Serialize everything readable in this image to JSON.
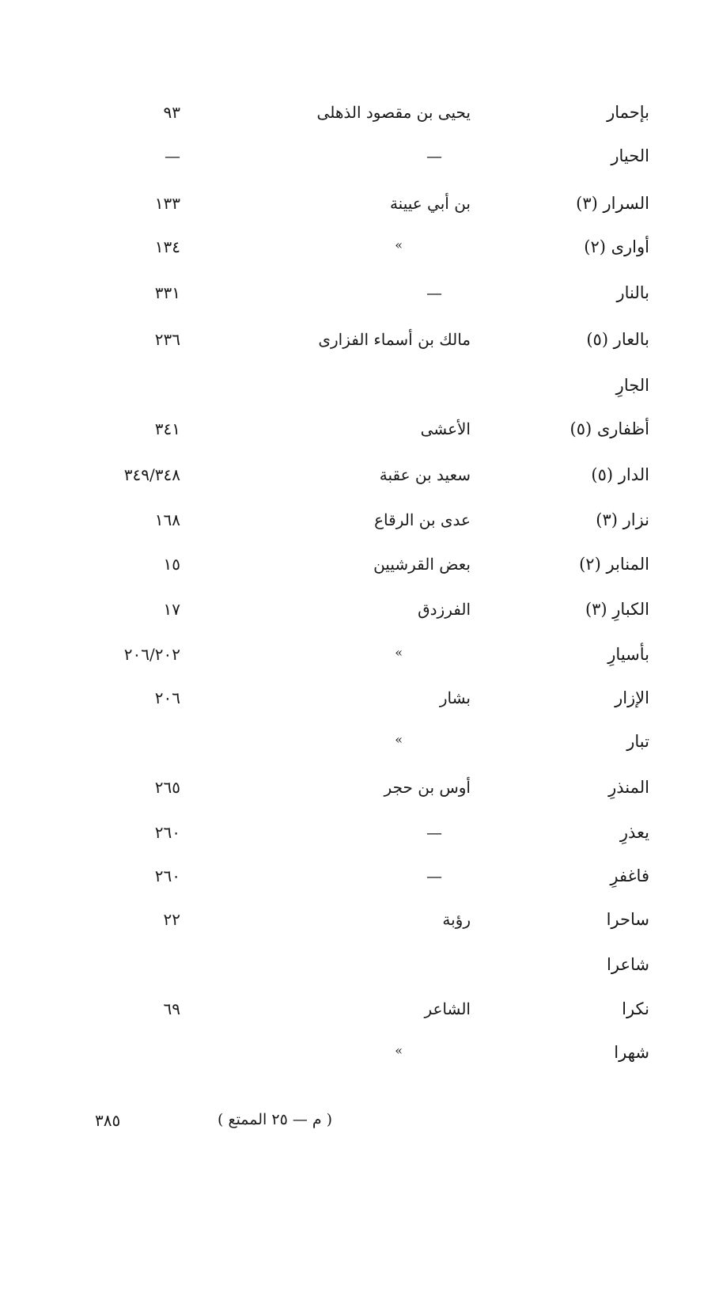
{
  "rows": [
    {
      "word": "بإحمار",
      "poet": "يحيى بن مقصود الذهلى",
      "page": "٩٣"
    },
    {
      "word": "الحيار",
      "poet": "—",
      "page": "—"
    },
    {
      "word": "السرار (٣)",
      "poet": "بن أبي عيينة",
      "page": "١٣٣"
    },
    {
      "word": "أوارى (٢)",
      "poet": "»",
      "page": "١٣٤"
    },
    {
      "word": "بالنار",
      "poet": "—",
      "page": "٣٣١"
    },
    {
      "word": "بالعار (٥)",
      "poet": "مالك بن أسماء الفزارى",
      "page": "٢٣٦"
    },
    {
      "word": "الجارِ",
      "poet": "",
      "page": ""
    },
    {
      "word": "أظفارى (٥)",
      "poet": "الأعشى",
      "page": "٣٤١"
    },
    {
      "word": "الدار (٥)",
      "poet": "سعيد بن عقبة",
      "page": "٣٤٩/٣٤٨"
    },
    {
      "word": "نزار (٣)",
      "poet": "عدى بن الرقاع",
      "page": "١٦٨"
    },
    {
      "word": "المنابر (٢)",
      "poet": "بعض القرشيين",
      "page": "١٥"
    },
    {
      "word": "الكبارِ (٣)",
      "poet": "الفرزدق",
      "page": "١٧"
    },
    {
      "word": "بأسيارِ",
      "poet": "»",
      "page": "٢٠٦/٢٠٢"
    },
    {
      "word": "الإزار",
      "poet": "بشار",
      "page": "٢٠٦"
    },
    {
      "word": "تبار",
      "poet": "»",
      "page": ""
    },
    {
      "word": "المنذرِ",
      "poet": "أوس بن حجر",
      "page": "٢٦٥"
    },
    {
      "word": "يعذرِ",
      "poet": "—",
      "page": "٢٦٠"
    },
    {
      "word": "فاغفرِ",
      "poet": "—",
      "page": "٢٦٠"
    },
    {
      "word": "ساحرا",
      "poet": "رؤبة",
      "page": "٢٢"
    },
    {
      "word": "شاعرا",
      "poet": "",
      "page": ""
    },
    {
      "word": "نكرا",
      "poet": "الشاعر",
      "page": "٦٩"
    },
    {
      "word": "شهرا",
      "poet": "»",
      "page": ""
    }
  ],
  "footer": {
    "page_number": "٣٨٥",
    "signature": "( م — ٢٥ الممتع )"
  }
}
